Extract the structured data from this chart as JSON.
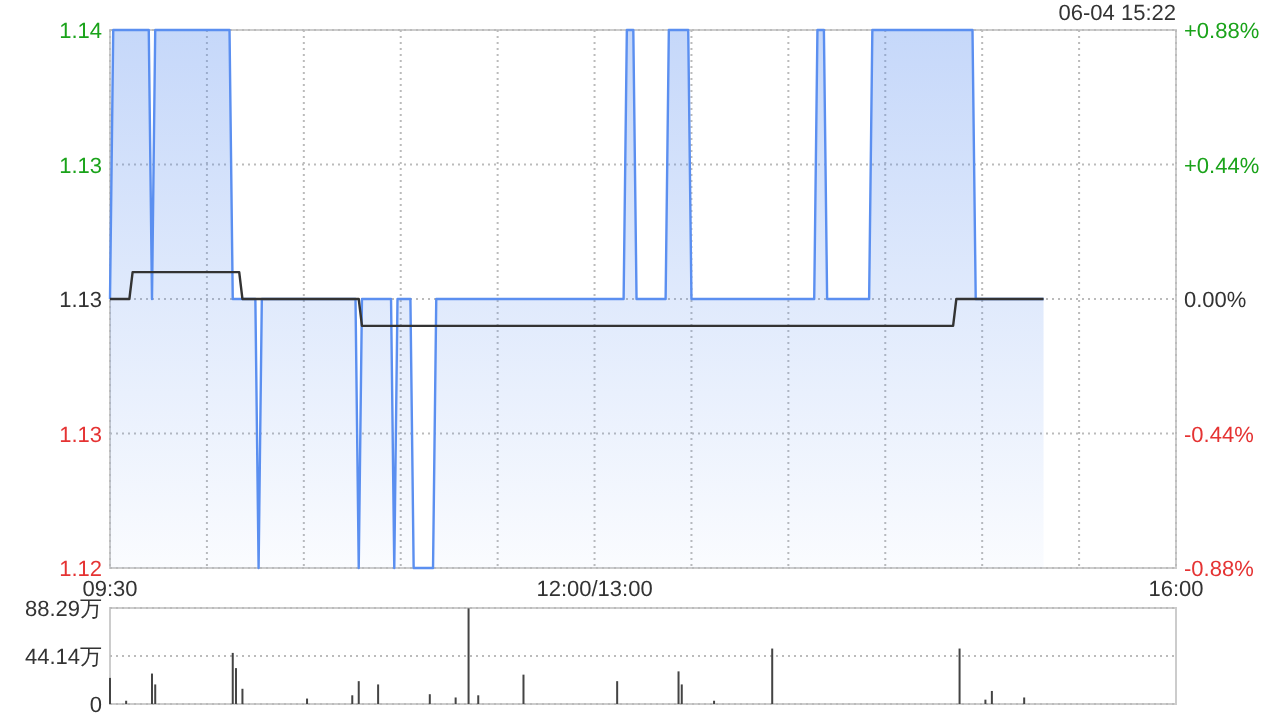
{
  "chart_data": [
    {
      "type": "line",
      "annotations": [
        "06-04 15:22"
      ],
      "grid": true,
      "categories": [
        "09:30",
        null,
        null,
        null,
        null,
        null,
        null,
        null,
        null,
        null,
        null,
        null,
        null,
        null,
        null,
        null,
        null,
        null,
        null,
        null,
        null,
        null,
        null,
        null,
        null,
        null,
        null,
        null,
        null,
        null,
        null,
        null,
        null,
        null,
        null,
        null,
        null,
        null,
        null,
        null,
        null,
        null,
        null,
        null,
        null,
        null,
        null,
        null,
        null,
        null,
        null,
        null,
        null,
        null,
        null,
        null,
        null,
        null,
        null,
        null,
        null,
        null,
        null,
        null,
        null,
        null,
        null,
        null,
        null,
        null,
        null,
        null,
        null,
        null,
        null,
        null,
        null,
        null,
        null,
        null,
        null,
        null,
        null,
        null,
        null,
        null,
        null,
        null,
        null,
        null,
        null,
        null,
        null,
        null,
        null,
        null,
        null,
        null,
        null,
        null,
        null,
        null,
        null,
        null,
        null,
        null,
        null,
        null,
        null,
        null,
        null,
        null,
        null,
        null,
        null,
        null,
        null,
        null,
        null,
        null,
        null,
        null,
        null,
        null,
        null,
        null,
        null,
        null,
        null,
        null,
        null,
        null,
        null,
        null,
        null,
        null,
        null,
        null,
        null,
        null,
        null,
        null,
        null,
        null,
        null,
        null,
        null,
        null,
        null,
        null,
        "12:00/13:00",
        null,
        null,
        null,
        null,
        null,
        null,
        null,
        null,
        null,
        null,
        null,
        null,
        null,
        null,
        null,
        null,
        null,
        null,
        null,
        null,
        null,
        null,
        null,
        null,
        null,
        null,
        null,
        null,
        null,
        null,
        null,
        null,
        null,
        null,
        null,
        null,
        null,
        null,
        null,
        null,
        null,
        null,
        null,
        null,
        null,
        null,
        null,
        null,
        null,
        null,
        null,
        null,
        null,
        null,
        null,
        null,
        null,
        null,
        null,
        null,
        null,
        null,
        null,
        null,
        null,
        null,
        null,
        null,
        null,
        null,
        null,
        null,
        null,
        null,
        null,
        null,
        null,
        null,
        null,
        null,
        null,
        null,
        null,
        null,
        null,
        null,
        null,
        null,
        null,
        null,
        null,
        null,
        null,
        null,
        null,
        null,
        null,
        null,
        null,
        null,
        null,
        null,
        null,
        null,
        null,
        null,
        null,
        null,
        null,
        null,
        null,
        null,
        null,
        null,
        null,
        null,
        null,
        null,
        null,
        null,
        null,
        null,
        null,
        null,
        null,
        null,
        null,
        null,
        null,
        null,
        null,
        null,
        null,
        null,
        null,
        null,
        null,
        null,
        null,
        null,
        null,
        null,
        null,
        null,
        null,
        null,
        null,
        null,
        null,
        null,
        null,
        null,
        null,
        null,
        null,
        null,
        null,
        null,
        null,
        null,
        null,
        null,
        null,
        null,
        null,
        null,
        null,
        null,
        null,
        null,
        null,
        null,
        null,
        null,
        null,
        null,
        null,
        null,
        null,
        "16:00"
      ],
      "ylim": [
        1.12,
        1.14
      ],
      "yticks": [
        1.12,
        {
          "value": 1.125,
          "label": "1.13"
        },
        1.13,
        {
          "value": 1.135,
          "label": "1.13"
        },
        1.14
      ],
      "y2lim": [
        -0.88,
        0.88
      ],
      "y2ticks": [
        {
          "value": -0.88,
          "label": "-0.88%"
        },
        {
          "value": -0.44,
          "label": "-0.44%"
        },
        {
          "value": 0,
          "label": "0.00%"
        },
        {
          "value": 0.44,
          "label": "+0.44%"
        },
        {
          "value": 0.88,
          "label": "+0.88%"
        }
      ],
      "series": [
        {
          "type": "area",
          "color": "#5b8ff0",
          "values": [
            1.13,
            1.14,
            1.14,
            1.14,
            1.14,
            1.14,
            1.14,
            1.14,
            1.14,
            1.14,
            1.14,
            1.14,
            1.14,
            1.13,
            1.14,
            1.14,
            1.14,
            1.14,
            1.14,
            1.14,
            1.14,
            1.14,
            1.14,
            1.14,
            1.14,
            1.14,
            1.14,
            1.14,
            1.14,
            1.14,
            1.14,
            1.14,
            1.14,
            1.14,
            1.14,
            1.14,
            1.14,
            1.14,
            1.13,
            1.13,
            1.13,
            1.13,
            1.13,
            1.13,
            1.13,
            1.13,
            1.12,
            1.13,
            1.13,
            1.13,
            1.13,
            1.13,
            1.13,
            1.13,
            1.13,
            1.13,
            1.13,
            1.13,
            1.13,
            1.13,
            1.13,
            1.13,
            1.13,
            1.13,
            1.13,
            1.13,
            1.13,
            1.13,
            1.13,
            1.13,
            1.13,
            1.13,
            1.13,
            1.13,
            1.13,
            1.13,
            1.13,
            1.12,
            1.13,
            1.13,
            1.13,
            1.13,
            1.13,
            1.13,
            1.13,
            1.13,
            1.13,
            1.13,
            1.12,
            1.13,
            1.13,
            1.13,
            1.13,
            1.13,
            1.12,
            1.12,
            1.12,
            1.12,
            1.12,
            1.12,
            1.12,
            1.13,
            1.13,
            1.13,
            1.13,
            1.13,
            1.13,
            1.13,
            1.13,
            1.13,
            1.13,
            1.13,
            1.13,
            1.13,
            1.13,
            1.13,
            1.13,
            1.13,
            1.13,
            1.13,
            1.13,
            1.13,
            1.13,
            1.13,
            1.13,
            1.13,
            1.13,
            1.13,
            1.13,
            1.13,
            1.13,
            1.13,
            1.13,
            1.13,
            1.13,
            1.13,
            1.13,
            1.13,
            1.13,
            1.13,
            1.13,
            1.13,
            1.13,
            1.13,
            1.13,
            1.13,
            1.13,
            1.13,
            1.13,
            1.13,
            1.13,
            1.13,
            1.13,
            1.13,
            1.13,
            1.13,
            1.13,
            1.13,
            1.13,
            1.13,
            1.14,
            1.14,
            1.14,
            1.13,
            1.13,
            1.13,
            1.13,
            1.13,
            1.13,
            1.13,
            1.13,
            1.13,
            1.13,
            1.14,
            1.14,
            1.14,
            1.14,
            1.14,
            1.14,
            1.14,
            1.13,
            1.13,
            1.13,
            1.13,
            1.13,
            1.13,
            1.13,
            1.13,
            1.13,
            1.13,
            1.13,
            1.13,
            1.13,
            1.13,
            1.13,
            1.13,
            1.13,
            1.13,
            1.13,
            1.13,
            1.13,
            1.13,
            1.13,
            1.13,
            1.13,
            1.13,
            1.13,
            1.13,
            1.13,
            1.13,
            1.13,
            1.13,
            1.13,
            1.13,
            1.13,
            1.13,
            1.13,
            1.13,
            1.13,
            1.14,
            1.14,
            1.14,
            1.13,
            1.13,
            1.13,
            1.13,
            1.13,
            1.13,
            1.13,
            1.13,
            1.13,
            1.13,
            1.13,
            1.13,
            1.13,
            1.13,
            1.14,
            1.14,
            1.14,
            1.14,
            1.14,
            1.14,
            1.14,
            1.14,
            1.14,
            1.14,
            1.14,
            1.14,
            1.14,
            1.14,
            1.14,
            1.14,
            1.14,
            1.14,
            1.14,
            1.14,
            1.14,
            1.14,
            1.14,
            1.14,
            1.14,
            1.14,
            1.14,
            1.14,
            1.14,
            1.14,
            1.14,
            1.14,
            1.13,
            1.13,
            1.13,
            1.13,
            1.13,
            1.13,
            1.13,
            1.13,
            1.13,
            1.13,
            1.13,
            1.13,
            1.13,
            1.13,
            1.13,
            1.13,
            1.13,
            1.13,
            1.13,
            1.13,
            1.13,
            1.13,
            null,
            null,
            null,
            null,
            null,
            null,
            null,
            null,
            null,
            null,
            null,
            null,
            null,
            null,
            null,
            null,
            null,
            null,
            null,
            null,
            null,
            null,
            null,
            null,
            null,
            null,
            null,
            null,
            null,
            null,
            null,
            null,
            null,
            null,
            null,
            null,
            null,
            null,
            null,
            null,
            null
          ]
        },
        {
          "color": "#333333",
          "values": [
            1.13,
            1.13,
            1.13,
            1.13,
            1.13,
            1.13,
            1.13,
            1.131,
            1.131,
            1.131,
            1.131,
            1.131,
            1.131,
            1.131,
            1.131,
            1.131,
            1.131,
            1.131,
            1.131,
            1.131,
            1.131,
            1.131,
            1.131,
            1.131,
            1.131,
            1.131,
            1.131,
            1.131,
            1.131,
            1.131,
            1.131,
            1.131,
            1.131,
            1.131,
            1.131,
            1.131,
            1.131,
            1.131,
            1.131,
            1.131,
            1.131,
            1.13,
            1.13,
            1.13,
            1.13,
            1.13,
            1.13,
            1.13,
            1.13,
            1.13,
            1.13,
            1.13,
            1.13,
            1.13,
            1.13,
            1.13,
            1.13,
            1.13,
            1.13,
            1.13,
            1.13,
            1.13,
            1.13,
            1.13,
            1.13,
            1.13,
            1.13,
            1.13,
            1.13,
            1.13,
            1.13,
            1.13,
            1.13,
            1.13,
            1.13,
            1.13,
            1.13,
            1.13,
            1.129,
            1.129,
            1.129,
            1.129,
            1.129,
            1.129,
            1.129,
            1.129,
            1.129,
            1.129,
            1.129,
            1.129,
            1.129,
            1.129,
            1.129,
            1.129,
            1.129,
            1.129,
            1.129,
            1.129,
            1.129,
            1.129,
            1.129,
            1.129,
            1.129,
            1.129,
            1.129,
            1.129,
            1.129,
            1.129,
            1.129,
            1.129,
            1.129,
            1.129,
            1.129,
            1.129,
            1.129,
            1.129,
            1.129,
            1.129,
            1.129,
            1.129,
            1.129,
            1.129,
            1.129,
            1.129,
            1.129,
            1.129,
            1.129,
            1.129,
            1.129,
            1.129,
            1.129,
            1.129,
            1.129,
            1.129,
            1.129,
            1.129,
            1.129,
            1.129,
            1.129,
            1.129,
            1.129,
            1.129,
            1.129,
            1.129,
            1.129,
            1.129,
            1.129,
            1.129,
            1.129,
            1.129,
            1.129,
            1.129,
            1.129,
            1.129,
            1.129,
            1.129,
            1.129,
            1.129,
            1.129,
            1.129,
            1.129,
            1.129,
            1.129,
            1.129,
            1.129,
            1.129,
            1.129,
            1.129,
            1.129,
            1.129,
            1.129,
            1.129,
            1.129,
            1.129,
            1.129,
            1.129,
            1.129,
            1.129,
            1.129,
            1.129,
            1.129,
            1.129,
            1.129,
            1.129,
            1.129,
            1.129,
            1.129,
            1.129,
            1.129,
            1.129,
            1.129,
            1.129,
            1.129,
            1.129,
            1.129,
            1.129,
            1.129,
            1.129,
            1.129,
            1.129,
            1.129,
            1.129,
            1.129,
            1.129,
            1.129,
            1.129,
            1.129,
            1.129,
            1.129,
            1.129,
            1.129,
            1.129,
            1.129,
            1.129,
            1.129,
            1.129,
            1.129,
            1.129,
            1.129,
            1.129,
            1.129,
            1.129,
            1.129,
            1.129,
            1.129,
            1.129,
            1.129,
            1.129,
            1.129,
            1.129,
            1.129,
            1.129,
            1.129,
            1.129,
            1.129,
            1.129,
            1.129,
            1.129,
            1.129,
            1.129,
            1.129,
            1.129,
            1.129,
            1.129,
            1.129,
            1.129,
            1.129,
            1.129,
            1.129,
            1.129,
            1.129,
            1.129,
            1.129,
            1.129,
            1.129,
            1.129,
            1.129,
            1.129,
            1.129,
            1.129,
            1.129,
            1.129,
            1.13,
            1.13,
            1.13,
            1.13,
            1.13,
            1.13,
            1.13,
            1.13,
            1.13,
            1.13,
            1.13,
            1.13,
            1.13,
            1.13,
            1.13,
            1.13,
            1.13,
            1.13,
            1.13,
            1.13,
            1.13,
            1.13,
            1.13,
            1.13,
            1.13,
            1.13,
            1.13,
            1.13,
            null,
            null,
            null,
            null,
            null,
            null,
            null,
            null,
            null,
            null,
            null,
            null,
            null,
            null,
            null,
            null,
            null,
            null,
            null,
            null,
            null,
            null,
            null,
            null,
            null,
            null,
            null,
            null,
            null,
            null,
            null,
            null,
            null,
            null,
            null,
            null,
            null,
            null,
            null,
            null,
            null
          ]
        }
      ]
    },
    {
      "type": "bar",
      "grid": "y",
      "color": "#444444",
      "categories": [
        null,
        null,
        null,
        null,
        null,
        null,
        null,
        null,
        null,
        null,
        null,
        null,
        null,
        null,
        null,
        null,
        null,
        null,
        null,
        null,
        null,
        null,
        null,
        null,
        null,
        null,
        null,
        null,
        null,
        null,
        null,
        null,
        null,
        null,
        null,
        null,
        null,
        null,
        null,
        null,
        null,
        null,
        null,
        null,
        null,
        null,
        null,
        null,
        null,
        null,
        null,
        null,
        null,
        null,
        null,
        null,
        null,
        null,
        null,
        null,
        null,
        null,
        null,
        null,
        null,
        null,
        null,
        null,
        null,
        null,
        null,
        null,
        null,
        null,
        null,
        null,
        null,
        null,
        null,
        null,
        null,
        null,
        null,
        null,
        null,
        null,
        null,
        null,
        null,
        null,
        null,
        null,
        null,
        null,
        null,
        null,
        null,
        null,
        null,
        null,
        null,
        null,
        null,
        null,
        null,
        null,
        null,
        null,
        null,
        null,
        null,
        null,
        null,
        null,
        null,
        null,
        null,
        null,
        null,
        null,
        null,
        null,
        null,
        null,
        null,
        null,
        null,
        null,
        null,
        null,
        null,
        null,
        null,
        null,
        null,
        null,
        null,
        null,
        null,
        null,
        null,
        null,
        null,
        null,
        null,
        null,
        null,
        null,
        null,
        null,
        null,
        null,
        null,
        null,
        null,
        null,
        null,
        null,
        null,
        null,
        null,
        null,
        null,
        null,
        null,
        null,
        null,
        null,
        null,
        null,
        null,
        null,
        null,
        null,
        null,
        null,
        null,
        null,
        null,
        null,
        null,
        null,
        null,
        null,
        null,
        null,
        null,
        null,
        null,
        null,
        null,
        null,
        null,
        null,
        null,
        null,
        null,
        null,
        null,
        null,
        null,
        null,
        null,
        null,
        null,
        null,
        null,
        null,
        null,
        null,
        null,
        null,
        null,
        null,
        null,
        null,
        null,
        null,
        null,
        null,
        null,
        null,
        null,
        null,
        null,
        null,
        null,
        null,
        null,
        null,
        null,
        null,
        null,
        null,
        null,
        null,
        null,
        null,
        null,
        null,
        null,
        null,
        null,
        null,
        null,
        null,
        null,
        null,
        null,
        null,
        null,
        null,
        null,
        null,
        null,
        null,
        null,
        null,
        null,
        null,
        null,
        null,
        null,
        null,
        null,
        null,
        null,
        null,
        null,
        null,
        null,
        null,
        null,
        null,
        null,
        null,
        null,
        null,
        null,
        null,
        null,
        null,
        null,
        null,
        null,
        null,
        null,
        null,
        null,
        null,
        null,
        null,
        null,
        null,
        null,
        null,
        null,
        null,
        null,
        null,
        null,
        null,
        null,
        null,
        null,
        null,
        null,
        null,
        null,
        null,
        null,
        null,
        null,
        null,
        null,
        null,
        null,
        null,
        null,
        null,
        null,
        null,
        null,
        null,
        null,
        null,
        null,
        null,
        null,
        null,
        null
      ],
      "ylim": [
        0,
        88.29
      ],
      "yticks": [
        0,
        {
          "value": 44.14,
          "label": "44.14万"
        },
        {
          "value": 88.29,
          "label": "88.29万"
        }
      ],
      "values": [
        24,
        null,
        null,
        null,
        null,
        3,
        null,
        null,
        null,
        null,
        null,
        null,
        null,
        28,
        18,
        null,
        null,
        null,
        null,
        null,
        null,
        null,
        null,
        null,
        null,
        null,
        null,
        null,
        null,
        null,
        null,
        null,
        null,
        null,
        null,
        null,
        null,
        null,
        47,
        33,
        null,
        14,
        null,
        null,
        null,
        null,
        null,
        null,
        null,
        null,
        null,
        null,
        null,
        null,
        null,
        null,
        null,
        null,
        null,
        null,
        null,
        5,
        null,
        null,
        null,
        null,
        null,
        null,
        null,
        null,
        null,
        null,
        null,
        null,
        null,
        8,
        null,
        21,
        null,
        null,
        null,
        null,
        null,
        18,
        null,
        null,
        null,
        null,
        null,
        null,
        null,
        null,
        null,
        null,
        null,
        null,
        null,
        null,
        null,
        9,
        null,
        null,
        null,
        null,
        null,
        null,
        null,
        6,
        null,
        null,
        null,
        88,
        null,
        null,
        8,
        null,
        null,
        null,
        null,
        null,
        null,
        null,
        null,
        null,
        null,
        null,
        null,
        null,
        27,
        null,
        null,
        null,
        null,
        null,
        null,
        null,
        null,
        null,
        null,
        null,
        null,
        null,
        null,
        null,
        null,
        null,
        null,
        null,
        null,
        null,
        null,
        null,
        null,
        null,
        null,
        null,
        null,
        21,
        null,
        null,
        null,
        null,
        null,
        null,
        null,
        null,
        null,
        null,
        null,
        null,
        null,
        null,
        null,
        null,
        null,
        null,
        30,
        18,
        null,
        null,
        null,
        null,
        null,
        null,
        null,
        null,
        null,
        3,
        null,
        null,
        null,
        null,
        null,
        null,
        null,
        null,
        null,
        null,
        null,
        null,
        null,
        null,
        null,
        null,
        null,
        51,
        null,
        null,
        null,
        null,
        null,
        null,
        null,
        null,
        null,
        null,
        null,
        null,
        null,
        null,
        null,
        null,
        null,
        null,
        null,
        null,
        null,
        null,
        null,
        null,
        null,
        null,
        null,
        null,
        null,
        null,
        null,
        null,
        null,
        null,
        null,
        null,
        null,
        null,
        null,
        null,
        null,
        null,
        null,
        null,
        null,
        null,
        null,
        null,
        null,
        null,
        null,
        null,
        null,
        null,
        null,
        null,
        null,
        51,
        null,
        null,
        null,
        null,
        null,
        null,
        null,
        4,
        null,
        12,
        null,
        null,
        null,
        null,
        null,
        null,
        null,
        null,
        null,
        6,
        null,
        null,
        null,
        null,
        null,
        null,
        null,
        null,
        null,
        null,
        null,
        null,
        null,
        null,
        null,
        null,
        null,
        null,
        null,
        null,
        null,
        null,
        null,
        null,
        null,
        null,
        null,
        null,
        null,
        null,
        null,
        null,
        null,
        null,
        null,
        null,
        null,
        null,
        null,
        null,
        null,
        null,
        null,
        null,
        null,
        null,
        null
      ]
    }
  ]
}
